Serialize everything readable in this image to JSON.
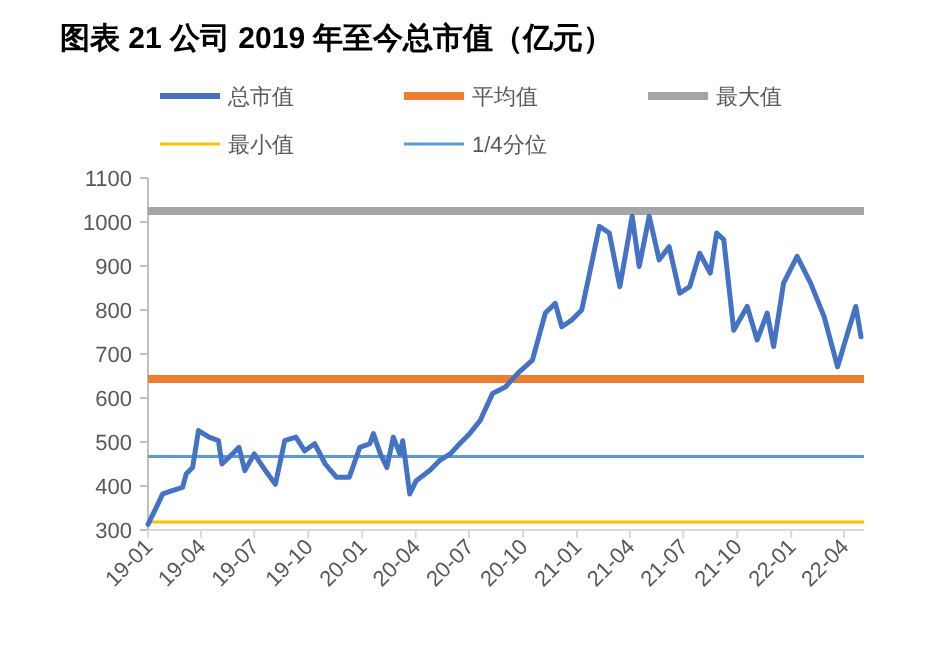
{
  "chart_data": {
    "type": "line",
    "title": "图表 21 公司 2019 年至今总市值（亿元）",
    "x": [
      "2019-01-01",
      "2019-01-15",
      "2019-01-26",
      "2019-02-10",
      "2019-03-01",
      "2019-03-07",
      "2019-03-18",
      "2019-03-28",
      "2019-04-15",
      "2019-05-01",
      "2019-05-07",
      "2019-05-25",
      "2019-06-05",
      "2019-06-15",
      "2019-07-01",
      "2019-07-20",
      "2019-08-06",
      "2019-08-22",
      "2019-09-10",
      "2019-09-25",
      "2019-10-12",
      "2019-10-30",
      "2019-11-18",
      "2019-12-10",
      "2019-12-28",
      "2020-01-14",
      "2020-01-20",
      "2020-02-01",
      "2020-02-12",
      "2020-02-23",
      "2020-03-05",
      "2020-03-10",
      "2020-03-22",
      "2020-04-02",
      "2020-04-25",
      "2020-05-12",
      "2020-05-30",
      "2020-06-15",
      "2020-07-02",
      "2020-07-20",
      "2020-08-10",
      "2020-09-01",
      "2020-09-22",
      "2020-10-17",
      "2020-11-08",
      "2020-11-25",
      "2020-12-06",
      "2020-12-23",
      "2021-01-09",
      "2021-01-20",
      "2021-02-08",
      "2021-02-25",
      "2021-03-15",
      "2021-04-05",
      "2021-04-17",
      "2021-05-04",
      "2021-05-21",
      "2021-06-07",
      "2021-06-25",
      "2021-07-12",
      "2021-07-29",
      "2021-08-16",
      "2021-08-27",
      "2021-09-08",
      "2021-09-25",
      "2021-10-18",
      "2021-11-04",
      "2021-11-21",
      "2021-12-02",
      "2021-12-19",
      "2022-01-11",
      "2022-02-03",
      "2022-02-26",
      "2022-03-21",
      "2022-04-07",
      "2022-04-21",
      "2022-04-30"
    ],
    "series": [
      {
        "name": "总市值",
        "color": "#4472c4",
        "values": [
          313,
          351,
          382,
          389,
          397,
          427,
          442,
          526,
          511,
          503,
          450,
          473,
          488,
          435,
          473,
          435,
          404,
          503,
          511,
          480,
          496,
          450,
          420,
          420,
          488,
          496,
          519,
          473,
          442,
          511,
          473,
          503,
          382,
          412,
          435,
          458,
          473,
          496,
          519,
          549,
          610,
          625,
          656,
          686,
          793,
          815,
          762,
          777,
          800,
          868,
          990,
          975,
          853,
          1013,
          899,
          1013,
          914,
          944,
          838,
          853,
          929,
          884,
          975,
          960,
          754,
          808,
          732,
          793,
          717,
          861,
          922,
          861,
          785,
          671,
          747,
          808,
          739
        ]
      }
    ],
    "ref_lines": [
      {
        "axis": "y",
        "value": 643,
        "label": "平均值",
        "color": "#ed7d31"
      },
      {
        "axis": "y",
        "value": 1025,
        "label": "最大值",
        "color": "#a5a5a5"
      },
      {
        "axis": "y",
        "value": 318,
        "label": "最小值",
        "color": "#ffc000"
      },
      {
        "axis": "y",
        "value": 467,
        "label": "1/4分位",
        "color": "#5b9bd5"
      }
    ],
    "xlim": [
      "2019-01-01",
      "2022-05-05"
    ],
    "xticks": [
      {
        "value": "2019-01-01",
        "label": "19-01"
      },
      {
        "value": "2019-04-01",
        "label": "19-04"
      },
      {
        "value": "2019-07-01",
        "label": "19-07"
      },
      {
        "value": "2019-10-01",
        "label": "19-10"
      },
      {
        "value": "2020-01-01",
        "label": "20-01"
      },
      {
        "value": "2020-04-01",
        "label": "20-04"
      },
      {
        "value": "2020-07-01",
        "label": "20-07"
      },
      {
        "value": "2020-10-01",
        "label": "20-10"
      },
      {
        "value": "2021-01-01",
        "label": "21-01"
      },
      {
        "value": "2021-04-01",
        "label": "21-04"
      },
      {
        "value": "2021-07-01",
        "label": "21-07"
      },
      {
        "value": "2021-10-01",
        "label": "21-10"
      },
      {
        "value": "2022-01-01",
        "label": "22-01"
      },
      {
        "value": "2022-04-01",
        "label": "22-04"
      }
    ],
    "ylim": [
      300,
      1100
    ],
    "yticks": [
      300,
      400,
      500,
      600,
      700,
      800,
      900,
      1000,
      1100
    ],
    "grid": false,
    "legend": "top",
    "marker": "none",
    "line_style": "solid"
  }
}
